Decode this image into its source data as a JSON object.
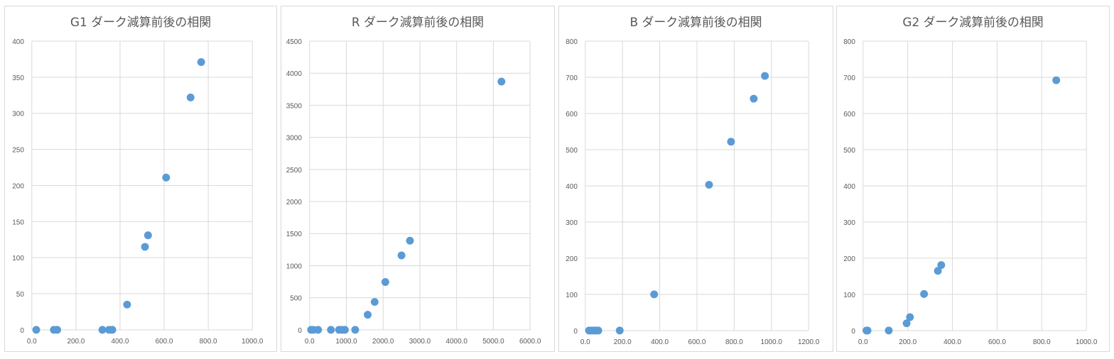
{
  "chart_data": [
    {
      "type": "scatter",
      "title": "G1  ダーク減算前後の相関",
      "xlim": [
        0,
        1000
      ],
      "ylim": [
        0,
        400
      ],
      "xticks": [
        0,
        200,
        400,
        600,
        800,
        1000
      ],
      "yticks": [
        0,
        50,
        100,
        150,
        200,
        250,
        300,
        350,
        400
      ],
      "xtick_labels": [
        "0.0",
        "200.0",
        "400.0",
        "600.0",
        "800.0",
        "1000.0"
      ],
      "ytick_labels": [
        "0",
        "50",
        "100",
        "150",
        "200",
        "250",
        "300",
        "350",
        "400"
      ],
      "grid": true,
      "legend": "none",
      "color": "#5b9bd5",
      "points": [
        [
          20,
          0
        ],
        [
          100,
          0
        ],
        [
          115,
          0
        ],
        [
          320,
          0
        ],
        [
          350,
          0
        ],
        [
          365,
          0
        ],
        [
          432,
          35
        ],
        [
          513,
          115
        ],
        [
          527,
          131
        ],
        [
          609,
          211
        ],
        [
          720,
          322
        ],
        [
          768,
          371
        ]
      ]
    },
    {
      "type": "scatter",
      "title": "R  ダーク減算前後の相関",
      "xlim": [
        0,
        6000
      ],
      "ylim": [
        0,
        4500
      ],
      "xticks": [
        0,
        1000,
        2000,
        3000,
        4000,
        5000,
        6000
      ],
      "yticks": [
        0,
        500,
        1000,
        1500,
        2000,
        2500,
        3000,
        3500,
        4000,
        4500
      ],
      "xtick_labels": [
        "0.0",
        "1000.0",
        "2000.0",
        "3000.0",
        "4000.0",
        "5000.0",
        "6000.0"
      ],
      "ytick_labels": [
        "0",
        "500",
        "1000",
        "1500",
        "2000",
        "2500",
        "3000",
        "3500",
        "4000",
        "4500"
      ],
      "grid": true,
      "legend": "none",
      "color": "#5b9bd5",
      "points": [
        [
          40,
          0
        ],
        [
          100,
          0
        ],
        [
          230,
          0
        ],
        [
          580,
          0
        ],
        [
          800,
          0
        ],
        [
          880,
          0
        ],
        [
          960,
          0
        ],
        [
          1240,
          0
        ],
        [
          1580,
          235
        ],
        [
          1770,
          435
        ],
        [
          2060,
          745
        ],
        [
          2500,
          1160
        ],
        [
          2730,
          1390
        ],
        [
          5220,
          3870
        ]
      ]
    },
    {
      "type": "scatter",
      "title": "B  ダーク減算前後の相関",
      "xlim": [
        0,
        1200
      ],
      "ylim": [
        0,
        800
      ],
      "xticks": [
        0,
        200,
        400,
        600,
        800,
        1000,
        1200
      ],
      "yticks": [
        0,
        100,
        200,
        300,
        400,
        500,
        600,
        700,
        800
      ],
      "xtick_labels": [
        "0.0",
        "200.0",
        "400.0",
        "600.0",
        "800.0",
        "1000.0",
        "1200.0"
      ],
      "ytick_labels": [
        "0",
        "100",
        "200",
        "300",
        "400",
        "500",
        "600",
        "700",
        "800"
      ],
      "grid": true,
      "legend": "none",
      "color": "#5b9bd5",
      "points": [
        [
          20,
          0
        ],
        [
          30,
          0
        ],
        [
          40,
          0
        ],
        [
          50,
          0
        ],
        [
          60,
          0
        ],
        [
          70,
          0
        ],
        [
          185,
          0
        ],
        [
          370,
          100
        ],
        [
          665,
          403
        ],
        [
          783,
          522
        ],
        [
          905,
          641
        ],
        [
          965,
          704
        ]
      ]
    },
    {
      "type": "scatter",
      "title": "G2  ダーク減算前後の相関",
      "xlim": [
        0,
        1000
      ],
      "ylim": [
        0,
        800
      ],
      "xticks": [
        0,
        200,
        400,
        600,
        800,
        1000
      ],
      "yticks": [
        0,
        100,
        200,
        300,
        400,
        500,
        600,
        700,
        800
      ],
      "xtick_labels": [
        "0.0",
        "200.0",
        "400.0",
        "600.0",
        "800.0",
        "1000.0"
      ],
      "ytick_labels": [
        "0",
        "100",
        "200",
        "300",
        "400",
        "500",
        "600",
        "700",
        "800"
      ],
      "grid": true,
      "legend": "none",
      "color": "#5b9bd5",
      "points": [
        [
          15,
          0
        ],
        [
          20,
          0
        ],
        [
          115,
          0
        ],
        [
          195,
          20
        ],
        [
          210,
          37
        ],
        [
          273,
          101
        ],
        [
          335,
          165
        ],
        [
          350,
          181
        ],
        [
          865,
          692
        ]
      ]
    }
  ]
}
